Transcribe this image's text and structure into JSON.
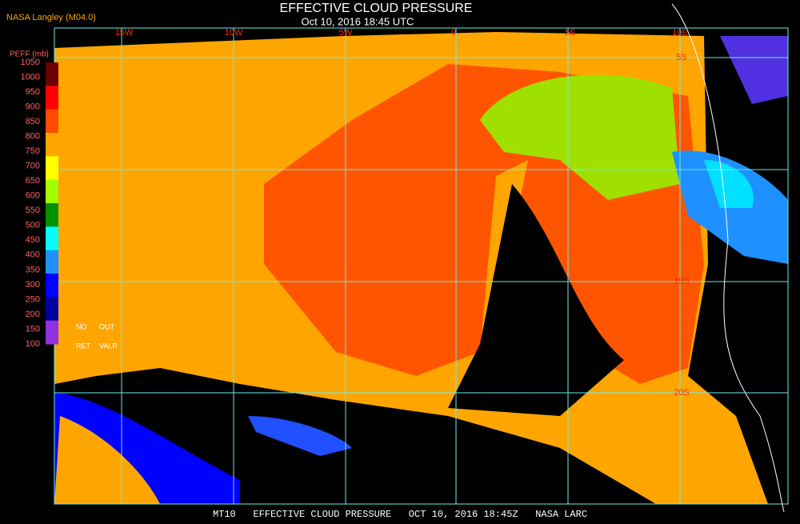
{
  "header": {
    "title": "EFFECTIVE CLOUD PRESSURE",
    "subtitle": "Oct 10, 2016 18:45 UTC",
    "source": "NASA Langley (M04.0)"
  },
  "colorbar": {
    "label": "PEFF (mb)",
    "ticks": [
      1050,
      1000,
      950,
      900,
      850,
      800,
      750,
      700,
      650,
      600,
      550,
      500,
      450,
      400,
      350,
      300,
      250,
      200,
      150,
      100
    ],
    "colors": [
      "#6b0000",
      "#ff0000",
      "#ff4a00",
      "#ffa500",
      "#ffff00",
      "#a0ff00",
      "#009000",
      "#00ffff",
      "#1e90ff",
      "#0000ff",
      "#0000a0",
      "#9030e0"
    ],
    "notes": [
      "NO",
      "OUT",
      "RET",
      "VALR"
    ]
  },
  "map": {
    "lon_labels": [
      "15W",
      "10W",
      "5W",
      "0",
      "5E",
      "10E"
    ],
    "lat_labels": [
      "5S",
      "15S",
      "20S"
    ]
  },
  "footer": "MT10   EFFECTIVE CLOUD PRESSURE   OCT 10, 2016 18:45Z   NASA LARC"
}
